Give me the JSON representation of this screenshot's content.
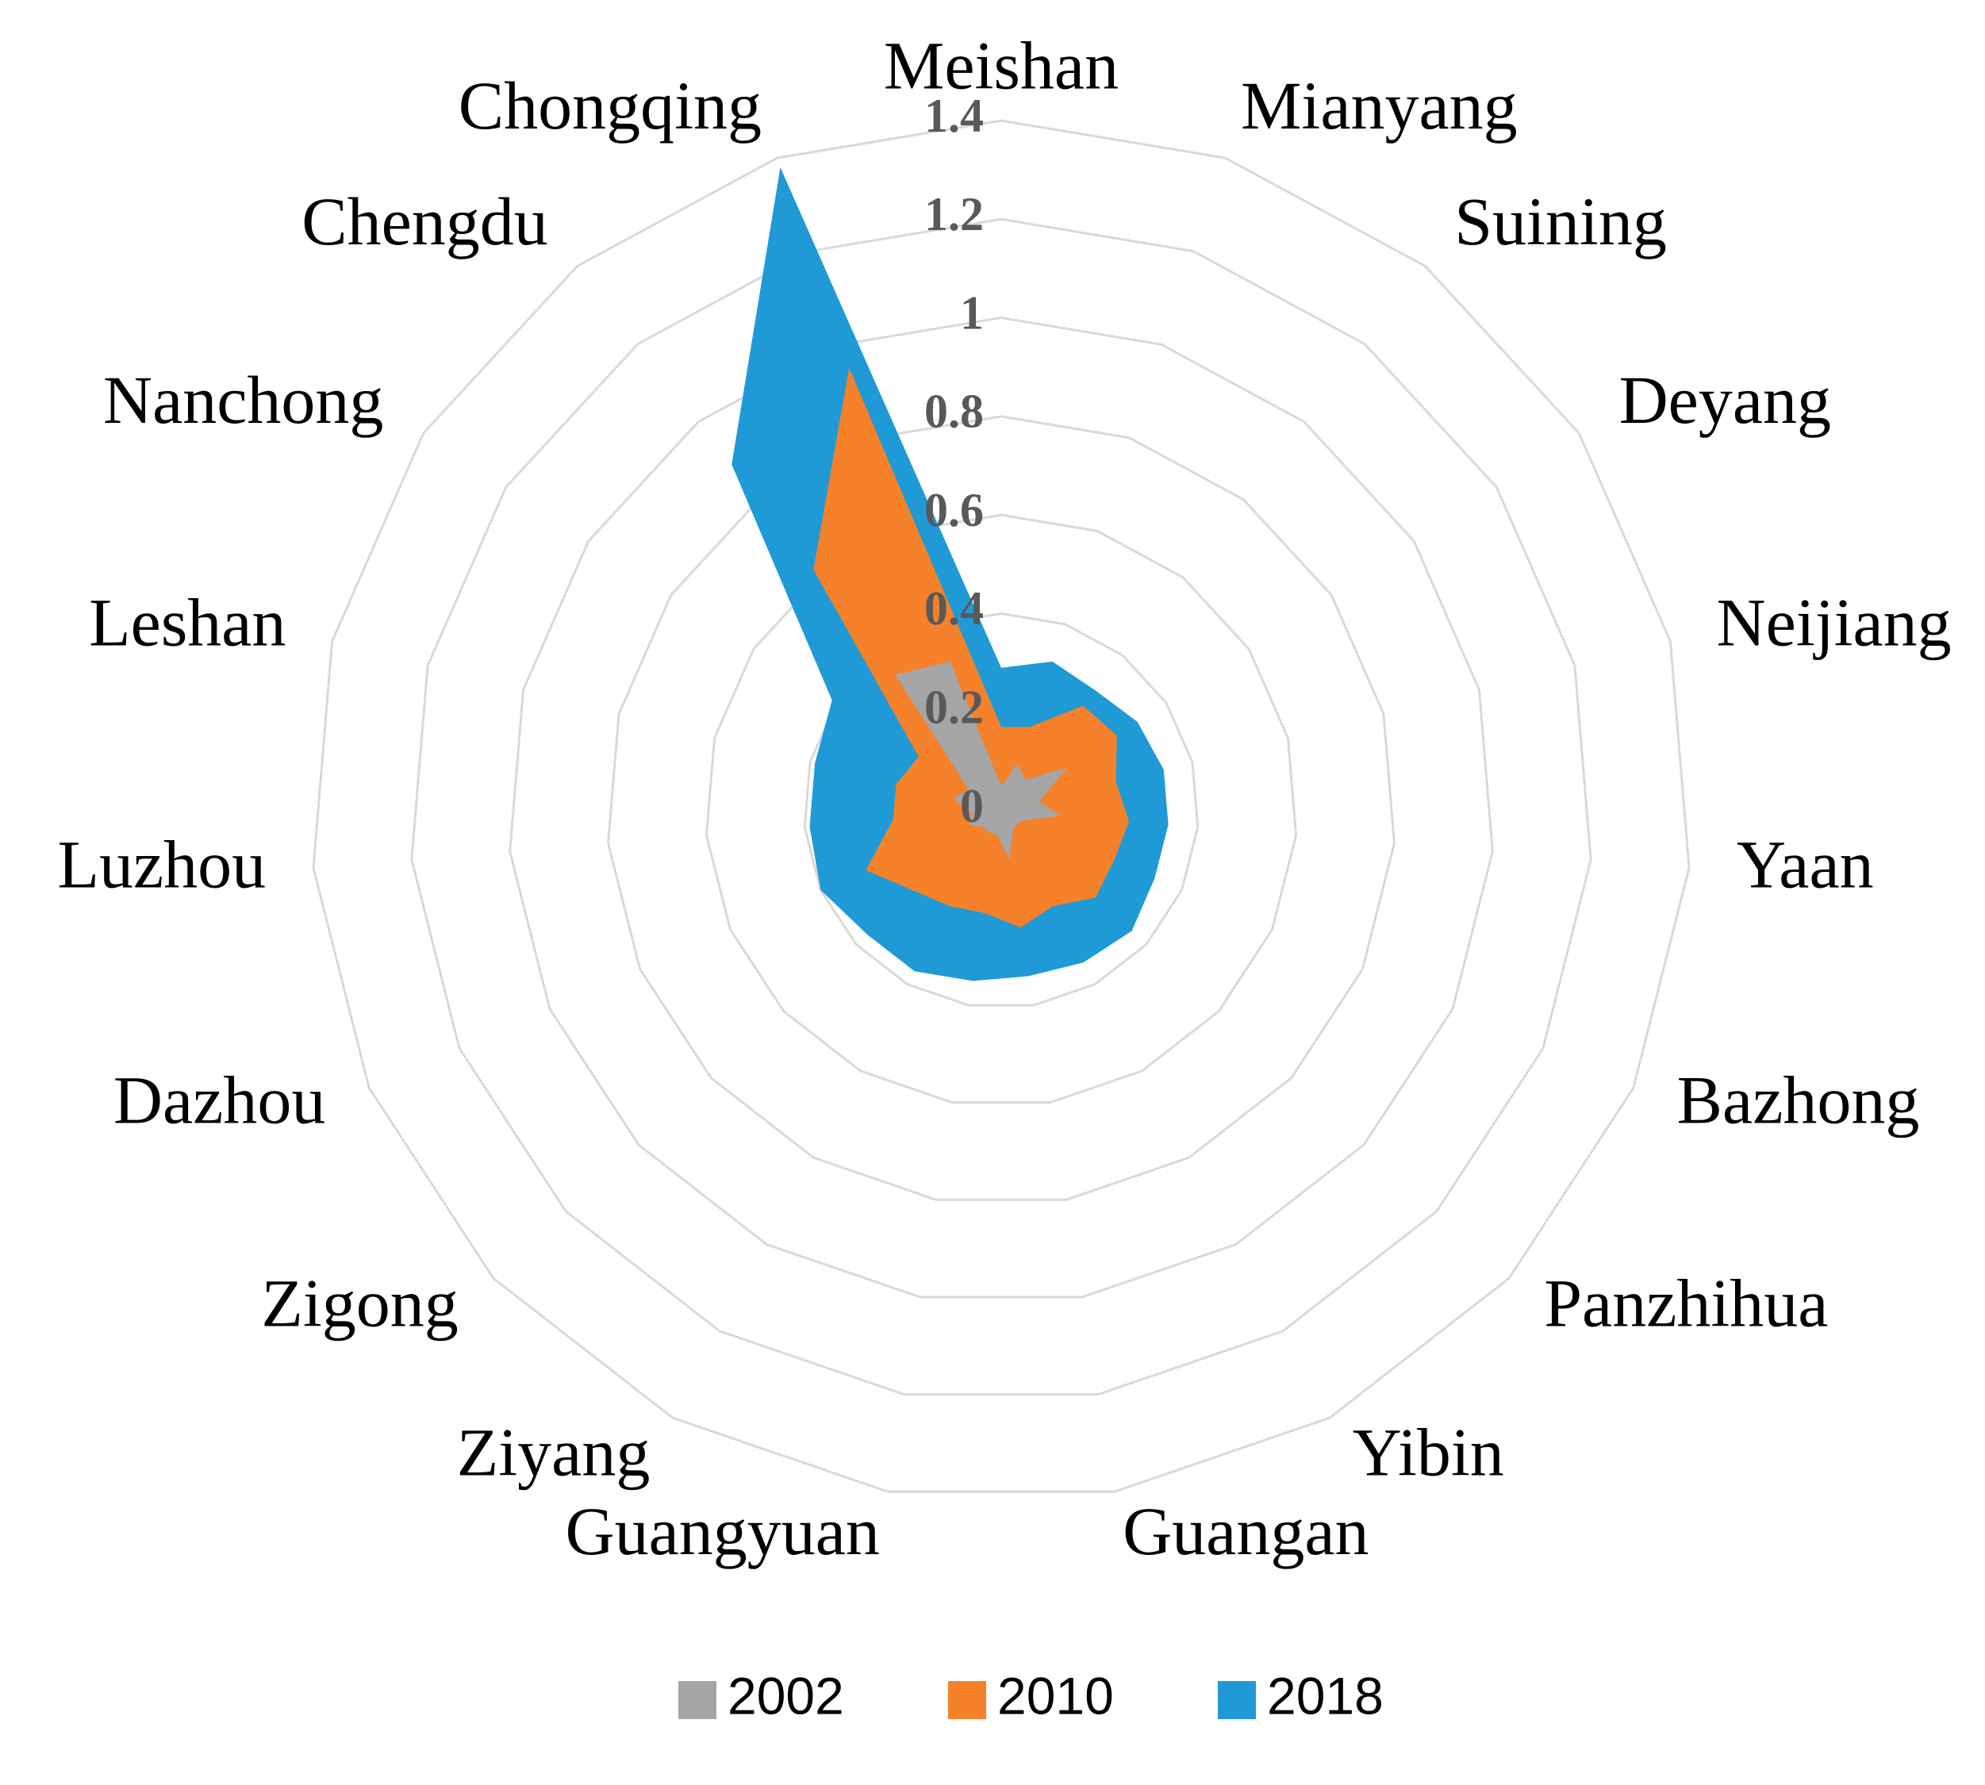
{
  "chart_data": {
    "type": "radar",
    "categories": [
      "Meishan",
      "Mianyang",
      "Suining",
      "Deyang",
      "Neijiang",
      "Yaan",
      "Bazhong",
      "Panzhihua",
      "Yibin",
      "Guangan",
      "Guangyuan",
      "Ziyang",
      "Zigong",
      "Dazhou",
      "Luzhou",
      "Leshan",
      "Nanchong",
      "Chengdu",
      "Chongqing"
    ],
    "series": [
      {
        "name": "2018",
        "color": "#1f9ad6",
        "values": [
          0.29,
          0.32,
          0.31,
          0.33,
          0.34,
          0.34,
          0.34,
          0.36,
          0.35,
          0.34,
          0.35,
          0.37,
          0.37,
          0.4,
          0.39,
          0.39,
          0.41,
          0.89,
          1.38
        ]
      },
      {
        "name": "2010",
        "color": "#f5812a",
        "values": [
          0.17,
          0.18,
          0.27,
          0.28,
          0.24,
          0.26,
          0.25,
          0.26,
          0.22,
          0.24,
          0.21,
          0.22,
          0.24,
          0.3,
          0.22,
          0.22,
          0.2,
          0.62,
          0.95
        ]
      },
      {
        "name": "2002",
        "color": "#a5a5a5",
        "values": [
          0.05,
          0.1,
          0.08,
          0.16,
          0.08,
          0.12,
          0.05,
          0.04,
          0.05,
          0.1,
          0.05,
          0.05,
          0.05,
          0.07,
          0.06,
          0.1,
          0.08,
          0.35,
          0.32
        ]
      }
    ],
    "ylim": [
      0,
      1.4
    ],
    "yticks": [
      0,
      0.2,
      0.4,
      0.6,
      0.8,
      1,
      1.2,
      1.4
    ],
    "grid": true
  }
}
